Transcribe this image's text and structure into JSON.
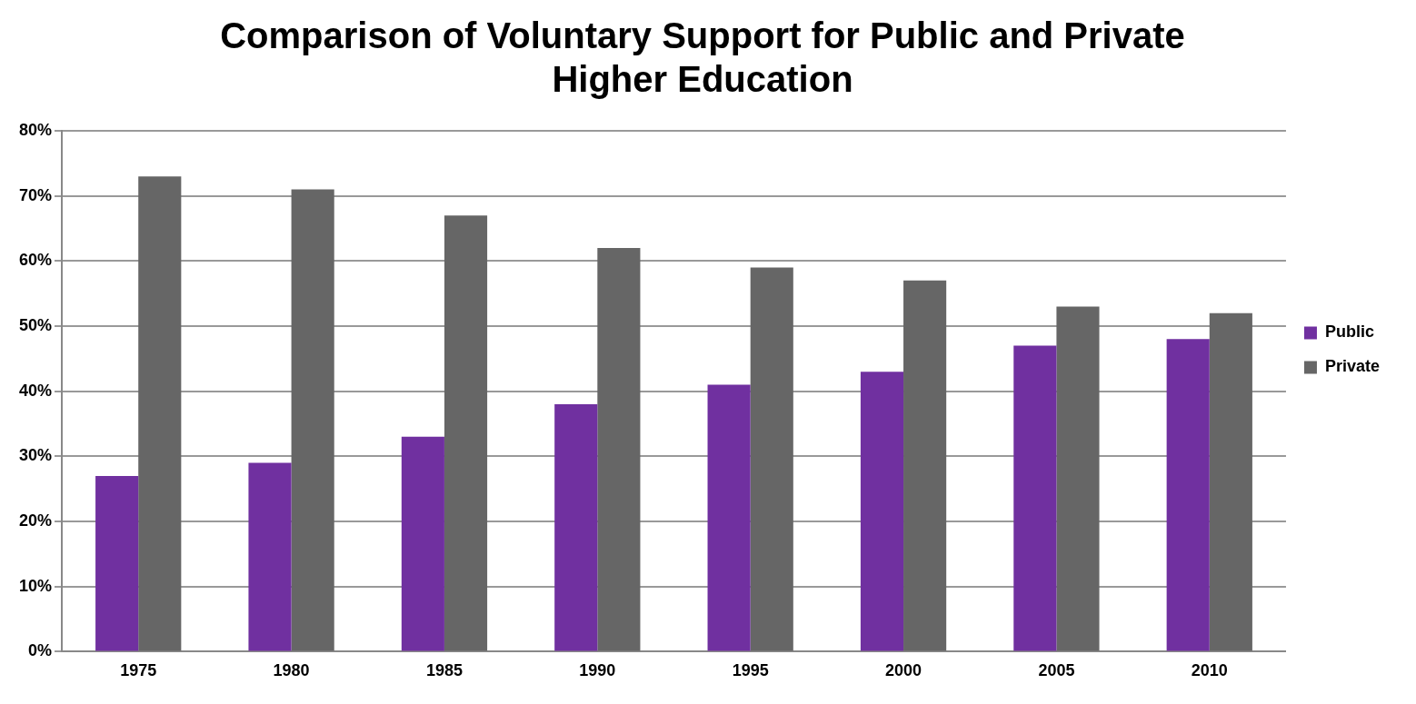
{
  "chart_data": {
    "type": "bar",
    "title": [
      "Comparison of Voluntary Support for Public and Private",
      "Higher Education"
    ],
    "categories": [
      "1975",
      "1980",
      "1985",
      "1990",
      "1995",
      "2000",
      "2005",
      "2010"
    ],
    "series": [
      {
        "name": "Public",
        "color": "#7030a0",
        "values": [
          27,
          29,
          33,
          38,
          41,
          43,
          47,
          48
        ]
      },
      {
        "name": "Private",
        "color": "#666666",
        "values": [
          73,
          71,
          67,
          62,
          59,
          57,
          53,
          52
        ]
      }
    ],
    "ylim": [
      0,
      80
    ],
    "yticks": [
      {
        "value": 0,
        "label": "0%"
      },
      {
        "value": 10,
        "label": "10%"
      },
      {
        "value": 20,
        "label": "20%"
      },
      {
        "value": 30,
        "label": "30%"
      },
      {
        "value": 40,
        "label": "40%"
      },
      {
        "value": 50,
        "label": "50%"
      },
      {
        "value": 60,
        "label": "60%"
      },
      {
        "value": 70,
        "label": "70%"
      },
      {
        "value": 80,
        "label": "80%"
      }
    ],
    "grid": "y",
    "legend": "right"
  }
}
